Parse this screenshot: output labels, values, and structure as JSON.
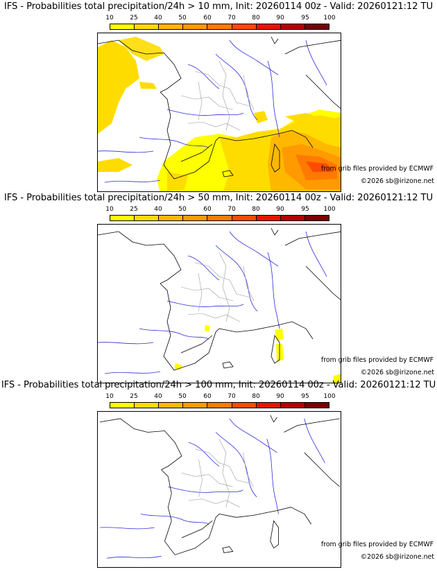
{
  "scale": {
    "ticks": [
      "10",
      "25",
      "40",
      "50",
      "60",
      "70",
      "80",
      "90",
      "95",
      "100"
    ],
    "colors": [
      "#ffff00",
      "#ffdc00",
      "#ffb800",
      "#ff9a00",
      "#ff7a00",
      "#ff4a00",
      "#e81400",
      "#b40000",
      "#7a0000"
    ]
  },
  "panels": [
    {
      "title": "IFS - Probabilities total precipitation/24h > 10 mm, Init: 20260114 00z - Valid: 20260121:12 TU",
      "source_credit": "from grib files provided by ECMWF",
      "copyright": "©2026 sb@irizone.net"
    },
    {
      "title": "IFS - Probabilities total precipitation/24h > 50 mm, Init: 20260114 00z - Valid: 20260121:12 TU",
      "source_credit": "from grib files provided by ECMWF",
      "copyright": "©2026 sb@irizone.net"
    },
    {
      "title": "IFS - Probabilities total precipitation/24h > 100 mm, Init: 20260114 00z - Valid: 20260121:12 TU",
      "source_credit": "from grib files provided by ECMWF",
      "copyright": "©2026 sb@irizone.net"
    }
  ]
}
